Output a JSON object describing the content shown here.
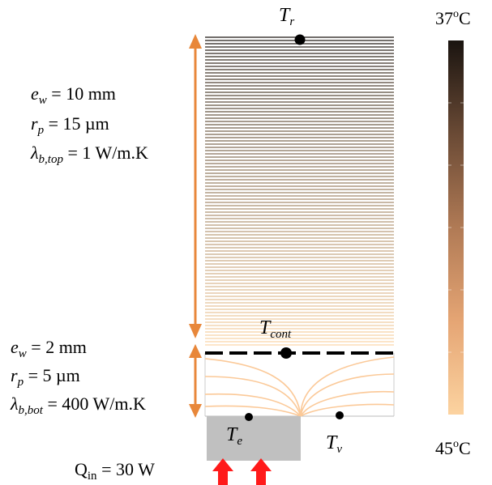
{
  "top_section": {
    "ew_symbol": "e",
    "ew_sub": "w",
    "ew_value": "= 10 mm",
    "rp_symbol": "r",
    "rp_sub": "p",
    "rp_value": "= 15 µm",
    "lambda_symbol": "λ",
    "lambda_sub": "b,top",
    "lambda_value": "= 1 W/m.K"
  },
  "bottom_section": {
    "ew_symbol": "e",
    "ew_sub": "w",
    "ew_value": "= 2 mm",
    "rp_symbol": "r",
    "rp_sub": "p",
    "rp_value": "= 5 µm",
    "lambda_symbol": "λ",
    "lambda_sub": "b,bot",
    "lambda_value": "= 400 W/m.K"
  },
  "sensors": {
    "tr": {
      "symbol": "T",
      "sub": "r"
    },
    "tcont": {
      "symbol": "T",
      "sub": "cont"
    },
    "te": {
      "symbol": "T",
      "sub": "e"
    },
    "tv": {
      "symbol": "T",
      "sub": "v"
    }
  },
  "heat_input": {
    "prefix": "Q",
    "sub": "in",
    "value": "= 30 W"
  },
  "colorbar": {
    "top_value": "37",
    "top_sup": "o",
    "top_unit": "C",
    "bottom_value": "45",
    "bottom_sup": "o",
    "bottom_unit": "C",
    "colors": [
      "#1a1410",
      "#6a4a35",
      "#b07a55",
      "#e5a574",
      "#fcd3a0"
    ]
  },
  "colors": {
    "arrow": "#e8873a",
    "heater_block": "#c0c0c0",
    "heat_arrows": "#ff1a1a",
    "flow_lines": "#fbc998"
  }
}
